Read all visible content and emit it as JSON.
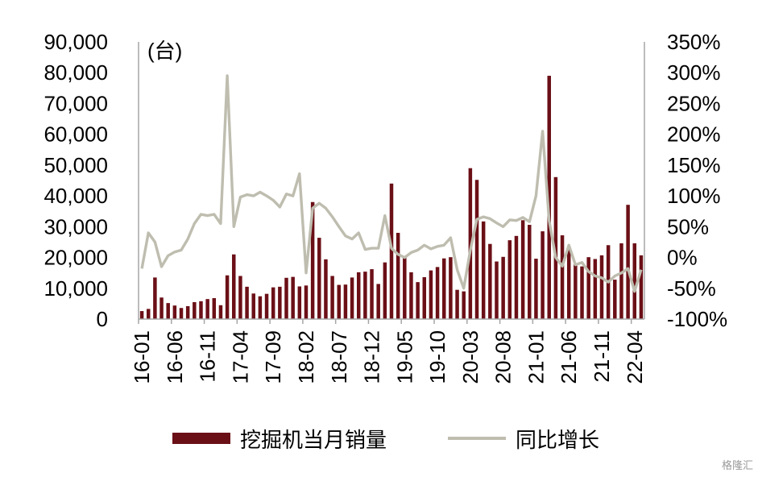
{
  "chart_data": {
    "type": "bar",
    "unit_label": "(台)",
    "colors": {
      "bar": "#6B0F16",
      "line": "#BEBDAF",
      "axis": "#A6A6A6"
    },
    "legend": {
      "bar": "挖掘机当月销量",
      "line": "同比增长",
      "placement": "bottom"
    },
    "y_left": {
      "min": 0,
      "max": 90000,
      "ticks": [
        "0",
        "10,000",
        "20,000",
        "30,000",
        "40,000",
        "50,000",
        "60,000",
        "70,000",
        "80,000",
        "90,000"
      ]
    },
    "y_right": {
      "min": -1.0,
      "max": 3.5,
      "ticks": [
        "-100%",
        "-50%",
        "0%",
        "50%",
        "100%",
        "150%",
        "200%",
        "250%",
        "300%",
        "350%"
      ]
    },
    "x_tick_labels": [
      "16-01",
      "16-06",
      "16-11",
      "17-04",
      "17-09",
      "18-02",
      "18-07",
      "18-12",
      "19-05",
      "19-10",
      "20-03",
      "20-08",
      "21-01",
      "21-06",
      "21-11",
      "22-04"
    ],
    "x_tick_every": 5,
    "categories": [
      "16-01",
      "16-02",
      "16-03",
      "16-04",
      "16-05",
      "16-06",
      "16-07",
      "16-08",
      "16-09",
      "16-10",
      "16-11",
      "16-12",
      "17-01",
      "17-02",
      "17-03",
      "17-04",
      "17-05",
      "17-06",
      "17-07",
      "17-08",
      "17-09",
      "17-10",
      "17-11",
      "17-12",
      "18-01",
      "18-02",
      "18-03",
      "18-04",
      "18-05",
      "18-06",
      "18-07",
      "18-08",
      "18-09",
      "18-10",
      "18-11",
      "18-12",
      "19-01",
      "19-02",
      "19-03",
      "19-04",
      "19-05",
      "19-06",
      "19-07",
      "19-08",
      "19-09",
      "19-10",
      "19-11",
      "19-12",
      "20-01",
      "20-02",
      "20-03",
      "20-04",
      "20-05",
      "20-06",
      "20-07",
      "20-08",
      "20-09",
      "20-10",
      "20-11",
      "20-12",
      "21-01",
      "21-02",
      "21-03",
      "21-04",
      "21-05",
      "21-06",
      "21-07",
      "21-08",
      "21-09",
      "21-10",
      "21-11",
      "21-12",
      "22-01",
      "22-02",
      "22-03",
      "22-04",
      "22-05"
    ],
    "series": [
      {
        "name": "挖掘机当月销量",
        "type": "bar",
        "axis": "left",
        "values": [
          2600,
          3300,
          13500,
          7000,
          5200,
          4400,
          3600,
          4200,
          5500,
          5800,
          6500,
          6800,
          4500,
          14200,
          21000,
          14000,
          10500,
          8300,
          7400,
          8200,
          10300,
          10500,
          13400,
          13700,
          10600,
          10900,
          38000,
          26400,
          19400,
          14000,
          11100,
          11200,
          13500,
          15200,
          15400,
          16200,
          11400,
          18400,
          44000,
          28000,
          20000,
          15200,
          12000,
          13600,
          15800,
          16900,
          19700,
          20100,
          9500,
          9000,
          49000,
          45200,
          31700,
          24400,
          18700,
          20200,
          25600,
          27000,
          32100,
          30600,
          19600,
          28500,
          79000,
          46100,
          27200,
          23100,
          17700,
          17100,
          20100,
          19500,
          20700,
          24000,
          12800,
          24600,
          37100,
          24600,
          20700
        ]
      },
      {
        "name": "同比增长",
        "type": "line",
        "axis": "right",
        "values": [
          -0.18,
          0.4,
          0.25,
          -0.15,
          0.03,
          0.09,
          0.12,
          0.3,
          0.55,
          0.7,
          0.68,
          0.7,
          0.55,
          2.95,
          0.5,
          0.98,
          1.02,
          1.0,
          1.06,
          1.0,
          0.93,
          0.82,
          1.03,
          1.0,
          1.36,
          -0.25,
          0.8,
          0.88,
          0.8,
          0.66,
          0.5,
          0.35,
          0.3,
          0.4,
          0.13,
          0.15,
          0.15,
          0.68,
          0.15,
          0.05,
          0.0,
          0.08,
          0.12,
          0.2,
          0.14,
          0.18,
          0.2,
          0.32,
          -0.2,
          -0.5,
          0.12,
          0.62,
          0.66,
          0.63,
          0.56,
          0.5,
          0.61,
          0.6,
          0.65,
          0.58,
          1.0,
          2.05,
          0.6,
          0.0,
          -0.14,
          0.2,
          -0.12,
          -0.08,
          -0.23,
          -0.3,
          -0.33,
          -0.4,
          -0.3,
          -0.25,
          -0.18,
          -0.55,
          -0.2
        ]
      }
    ]
  }
}
